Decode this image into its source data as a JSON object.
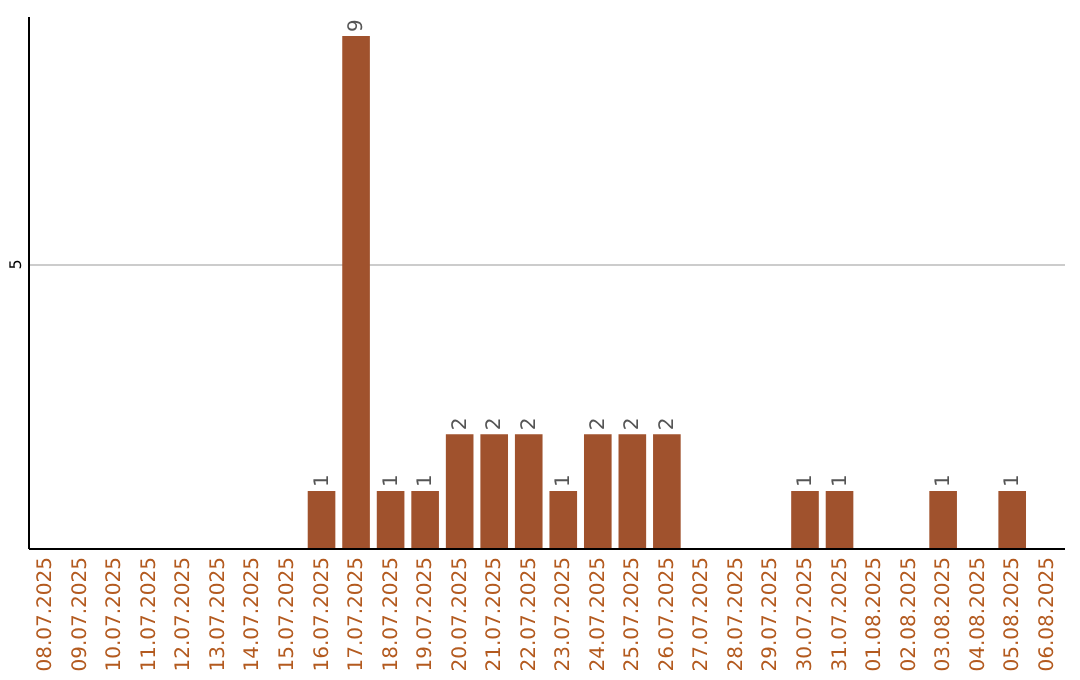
{
  "chart_data": {
    "type": "bar",
    "categories": [
      "08.07.2025",
      "09.07.2025",
      "10.07.2025",
      "11.07.2025",
      "12.07.2025",
      "13.07.2025",
      "14.07.2025",
      "15.07.2025",
      "16.07.2025",
      "17.07.2025",
      "18.07.2025",
      "19.07.2025",
      "20.07.2025",
      "21.07.2025",
      "22.07.2025",
      "23.07.2025",
      "24.07.2025",
      "25.07.2025",
      "26.07.2025",
      "27.07.2025",
      "28.07.2025",
      "29.07.2025",
      "30.07.2025",
      "31.07.2025",
      "01.08.2025",
      "02.08.2025",
      "03.08.2025",
      "04.08.2025",
      "05.08.2025",
      "06.08.2025"
    ],
    "values": [
      0,
      0,
      0,
      0,
      0,
      0,
      0,
      0,
      1,
      9,
      1,
      1,
      2,
      2,
      2,
      1,
      2,
      2,
      2,
      0,
      0,
      0,
      1,
      1,
      0,
      0,
      1,
      0,
      1,
      0
    ],
    "value_labels": [
      null,
      null,
      null,
      null,
      null,
      null,
      null,
      null,
      "1",
      "9",
      "1",
      "1",
      "2",
      "2",
      "2",
      "1",
      "2",
      "2",
      "2",
      null,
      null,
      null,
      "1",
      "1",
      null,
      null,
      "1",
      null,
      "1",
      null
    ],
    "color": "#a0522d",
    "ylim": [
      0,
      9.35
    ],
    "yticks": [
      5
    ],
    "grid": "y"
  }
}
